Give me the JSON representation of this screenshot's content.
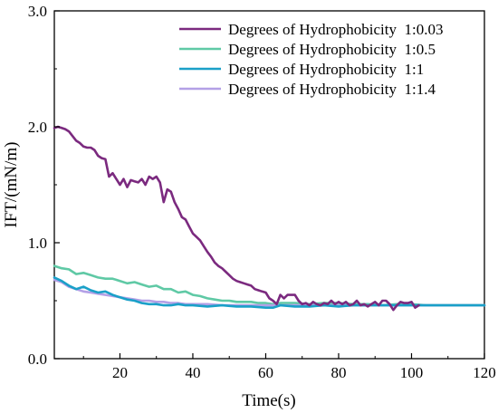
{
  "chart_data": {
    "type": "line",
    "title": "",
    "xlabel": "Time(s)",
    "ylabel": "IFT/(mN/m)",
    "xlim": [
      2,
      120
    ],
    "ylim": [
      0.0,
      3.0
    ],
    "x_ticks": [
      20,
      40,
      60,
      80,
      100,
      120
    ],
    "x_tick_labels": [
      "20",
      "40",
      "60",
      "80",
      "100",
      "120"
    ],
    "y_ticks": [
      0.0,
      1.0,
      2.0,
      3.0
    ],
    "y_tick_labels": [
      "0.0",
      "1.0",
      "2.0",
      "3.0"
    ],
    "grid": false,
    "legend_position": "top-right",
    "series": [
      {
        "name": "Degrees of Hydrophobicity  1:0.03",
        "color": "#7b2a7f",
        "x": [
          2,
          3,
          4,
          5,
          6,
          7,
          8,
          9,
          10,
          11,
          12,
          13,
          14,
          15,
          16,
          17,
          18,
          19,
          20,
          21,
          22,
          23,
          24,
          25,
          26,
          27,
          28,
          29,
          30,
          31,
          32,
          33,
          34,
          35,
          36,
          37,
          38,
          39,
          40,
          41,
          42,
          43,
          44,
          45,
          46,
          47,
          48,
          49,
          50,
          51,
          52,
          53,
          54,
          55,
          56,
          57,
          58,
          59,
          60,
          61,
          62,
          63,
          64,
          65,
          66,
          67,
          68,
          69,
          70,
          71,
          72,
          73,
          74,
          75,
          76,
          77,
          78,
          79,
          80,
          81,
          82,
          83,
          84,
          85,
          86,
          87,
          88,
          89,
          90,
          91,
          92,
          93,
          94,
          95,
          96,
          97,
          98,
          99,
          100,
          101,
          102
        ],
        "y": [
          1.99,
          2.0,
          1.99,
          1.98,
          1.96,
          1.92,
          1.88,
          1.86,
          1.83,
          1.82,
          1.82,
          1.8,
          1.75,
          1.73,
          1.72,
          1.57,
          1.6,
          1.55,
          1.5,
          1.55,
          1.48,
          1.54,
          1.53,
          1.52,
          1.55,
          1.5,
          1.57,
          1.55,
          1.57,
          1.52,
          1.35,
          1.46,
          1.44,
          1.35,
          1.29,
          1.22,
          1.2,
          1.14,
          1.08,
          1.05,
          1.02,
          0.97,
          0.92,
          0.88,
          0.83,
          0.8,
          0.78,
          0.75,
          0.72,
          0.69,
          0.67,
          0.66,
          0.65,
          0.64,
          0.63,
          0.6,
          0.59,
          0.58,
          0.57,
          0.52,
          0.5,
          0.47,
          0.55,
          0.52,
          0.55,
          0.55,
          0.55,
          0.5,
          0.47,
          0.48,
          0.46,
          0.49,
          0.47,
          0.46,
          0.48,
          0.47,
          0.5,
          0.47,
          0.49,
          0.47,
          0.49,
          0.46,
          0.47,
          0.5,
          0.46,
          0.47,
          0.45,
          0.47,
          0.49,
          0.46,
          0.5,
          0.5,
          0.47,
          0.42,
          0.46,
          0.49,
          0.48,
          0.48,
          0.49,
          0.44,
          0.46
        ]
      },
      {
        "name": "Degrees of Hydrophobicity  1:0.5",
        "color": "#5fc9a5",
        "x": [
          2,
          4,
          6,
          8,
          10,
          12,
          14,
          16,
          18,
          20,
          22,
          24,
          26,
          28,
          30,
          32,
          34,
          36,
          38,
          40,
          42,
          44,
          46,
          48,
          50,
          52,
          54,
          56,
          58,
          60,
          62,
          64,
          68,
          72,
          76,
          80,
          84,
          88,
          92,
          96,
          100,
          104,
          108,
          112,
          116,
          120
        ],
        "y": [
          0.8,
          0.78,
          0.77,
          0.73,
          0.74,
          0.72,
          0.7,
          0.69,
          0.69,
          0.67,
          0.65,
          0.66,
          0.64,
          0.62,
          0.63,
          0.6,
          0.6,
          0.57,
          0.58,
          0.55,
          0.54,
          0.52,
          0.51,
          0.5,
          0.5,
          0.49,
          0.49,
          0.49,
          0.48,
          0.48,
          0.47,
          0.48,
          0.48,
          0.47,
          0.48,
          0.48,
          0.47,
          0.47,
          0.46,
          0.47,
          0.47,
          0.46,
          0.46,
          0.46,
          0.46,
          0.46
        ]
      },
      {
        "name": "Degrees of Hydrophobicity  1:1",
        "color": "#1aa0c8",
        "x": [
          2,
          4,
          6,
          8,
          10,
          12,
          14,
          16,
          18,
          20,
          22,
          24,
          26,
          28,
          30,
          32,
          34,
          36,
          38,
          40,
          44,
          48,
          52,
          56,
          60,
          62,
          64,
          68,
          72,
          76,
          80,
          84,
          88,
          92,
          96,
          100,
          104,
          108,
          112,
          116,
          120
        ],
        "y": [
          0.7,
          0.67,
          0.63,
          0.6,
          0.62,
          0.59,
          0.57,
          0.58,
          0.55,
          0.53,
          0.51,
          0.5,
          0.48,
          0.47,
          0.47,
          0.46,
          0.46,
          0.47,
          0.46,
          0.46,
          0.45,
          0.46,
          0.45,
          0.45,
          0.44,
          0.44,
          0.46,
          0.45,
          0.45,
          0.46,
          0.45,
          0.46,
          0.46,
          0.46,
          0.46,
          0.46,
          0.46,
          0.46,
          0.46,
          0.46,
          0.46
        ]
      },
      {
        "name": "Degrees of Hydrophobicity  1:1.4",
        "color": "#b3a0e6",
        "x": [
          2,
          4,
          6,
          8,
          10,
          12,
          14,
          16,
          18,
          20,
          22,
          24,
          26,
          28,
          30,
          32,
          34,
          36,
          38,
          40,
          44,
          48,
          52,
          56,
          60,
          64,
          68,
          72,
          76,
          80,
          84,
          88,
          92,
          96,
          100,
          104,
          108,
          112,
          116,
          120
        ],
        "y": [
          0.68,
          0.66,
          0.62,
          0.6,
          0.58,
          0.57,
          0.56,
          0.55,
          0.54,
          0.53,
          0.52,
          0.51,
          0.5,
          0.5,
          0.49,
          0.49,
          0.48,
          0.48,
          0.47,
          0.47,
          0.47,
          0.46,
          0.46,
          0.46,
          0.46,
          0.46,
          0.46,
          0.46,
          0.46,
          0.46,
          0.46,
          0.46,
          0.46,
          0.46,
          0.46,
          0.46,
          0.46,
          0.46,
          0.46,
          0.46
        ]
      }
    ]
  }
}
